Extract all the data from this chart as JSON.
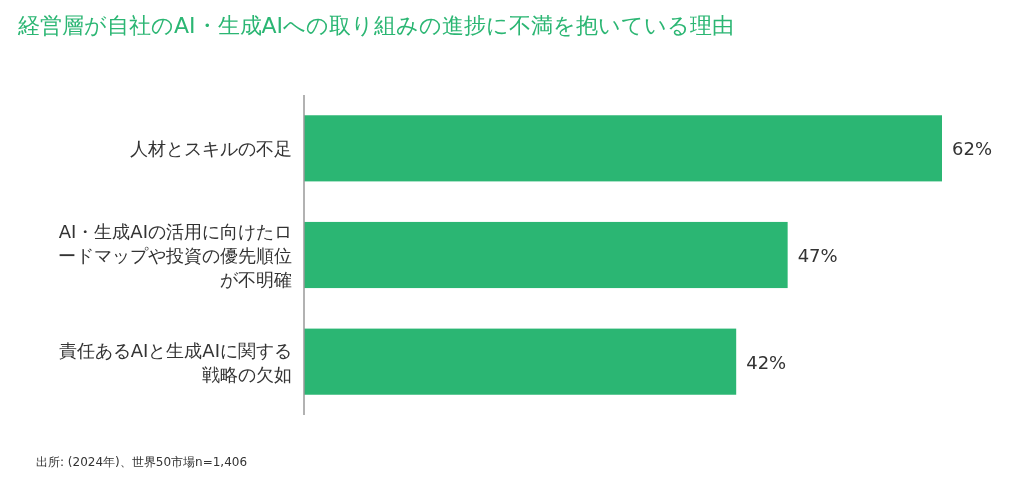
{
  "chart_data": {
    "type": "bar",
    "orientation": "horizontal",
    "title": "経営層が自社のAI・生成AIへの取り組みの進捗に不満を抱いている理由",
    "categories": [
      "人材とスキルの不足",
      "AI・生成AIの活用に向けたロードマップや投資の優先順位が不明確",
      "責任あるAIと生成AIに関する戦略の欠如"
    ],
    "values": [
      62,
      47,
      42
    ],
    "value_labels": [
      "62%",
      "47%",
      "42%"
    ],
    "color": "#2bb673",
    "annotations": [
      "出所: (2024年)、世界50市場n=1,406"
    ]
  }
}
